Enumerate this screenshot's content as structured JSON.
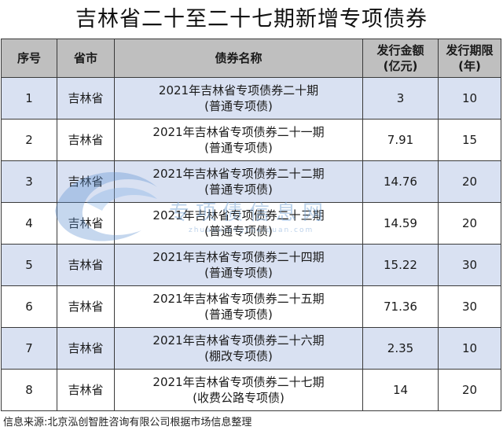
{
  "title": "吉林省二十至二十七期新增专项债券",
  "columns": {
    "index": "序号",
    "province": "省市",
    "name": "债券名称",
    "amount_line1": "发行金额",
    "amount_line2": "(亿元)",
    "term_line1": "发行期限",
    "term_line2": "(年)"
  },
  "rows": [
    {
      "index": "1",
      "province": "吉林省",
      "name_line1": "2021年吉林省专项债券二十期",
      "name_line2": "(普通专项债)",
      "amount": "3",
      "term": "10"
    },
    {
      "index": "2",
      "province": "吉林省",
      "name_line1": "2021年吉林省专项债券二十一期",
      "name_line2": "(普通专项债)",
      "amount": "7.91",
      "term": "15"
    },
    {
      "index": "3",
      "province": "吉林省",
      "name_line1": "2021年吉林省专项债券二十二期",
      "name_line2": "(普通专项债)",
      "amount": "14.76",
      "term": "20"
    },
    {
      "index": "4",
      "province": "吉林省",
      "name_line1": "2021年吉林省专项债券二十三期",
      "name_line2": "(普通专项债)",
      "amount": "14.59",
      "term": "20"
    },
    {
      "index": "5",
      "province": "吉林省",
      "name_line1": "2021年吉林省专项债券二十四期",
      "name_line2": "(普通专项债)",
      "amount": "15.22",
      "term": "30"
    },
    {
      "index": "6",
      "province": "吉林省",
      "name_line1": "2021年吉林省专项债券二十五期",
      "name_line2": "(普通专项债)",
      "amount": "71.36",
      "term": "30"
    },
    {
      "index": "7",
      "province": "吉林省",
      "name_line1": "2021年吉林省专项债券二十六期",
      "name_line2": "(棚改专项债)",
      "amount": "2.35",
      "term": "10"
    },
    {
      "index": "8",
      "province": "吉林省",
      "name_line1": "2021年吉林省专项债券二十七期",
      "name_line2": "(收费公路专项债)",
      "amount": "14",
      "term": "20"
    }
  ],
  "watermark": {
    "text": "专项债信息网",
    "url": "zhuanxiangzhaiquan.com"
  },
  "source": "信息来源:北京泓创智胜咨询有限公司根据市场信息整理",
  "colors": {
    "header_bg": "#bfbfbf",
    "shade_bg": "#d9e1f2",
    "border": "#3a3a3a"
  }
}
